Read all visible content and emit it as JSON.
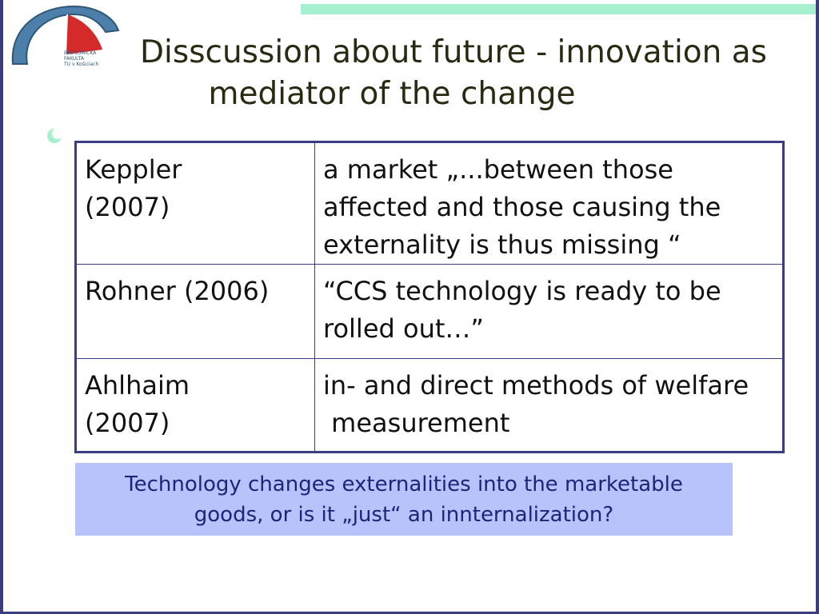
{
  "slide": {
    "title_line1": "Disscussion about future - innovation as",
    "title_line2": "mediator of the change",
    "logo_text": [
      "EKONOMICKÁ",
      "FAKULTA",
      "TU v Košiciach"
    ],
    "bullet_icon": "bullet-icon"
  },
  "table": {
    "rows": [
      {
        "author": [
          "Keppler",
          "(2007)"
        ],
        "text": [
          "a market „...between those",
          "affected and those causing the",
          "externality is thus missing “"
        ]
      },
      {
        "author": [
          "Rohner (2006)"
        ],
        "text": [
          "“CCS technology is ready to be",
          "rolled out…”"
        ]
      },
      {
        "author": [
          "Ahlhaim",
          "(2007)"
        ],
        "text": [
          "in- and direct methods of welfare",
          " measurement"
        ]
      }
    ]
  },
  "callout": {
    "line1": "Technology changes externalities into the marketable",
    "line2": "goods, or is it „just“ an innternalization?"
  },
  "colors": {
    "frame": "#3a3d80",
    "top_bar": "#a7f0cf",
    "callout_bg": "#b8c3fb",
    "callout_text": "#1f237a",
    "title_text": "#2a2a12",
    "logo_blue": "#4c7fa9",
    "logo_red": "#d42a2a"
  }
}
